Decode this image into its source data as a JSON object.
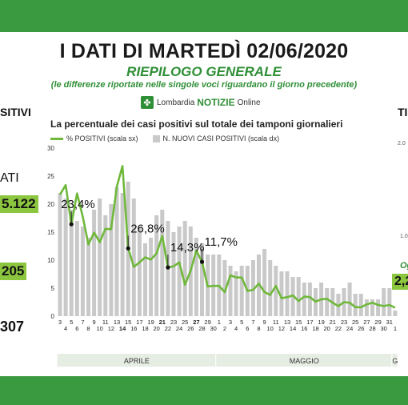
{
  "header": {
    "title": "I DATI DI MARTEDÌ 02/06/2020",
    "subtitle": "RIEPILOGO GENERALE",
    "note": "(le differenze riportate nelle singole voci riguardano il giorno precedente)",
    "logo_left": "Lombardia",
    "logo_mid": "NOTIZIE",
    "logo_right": "Online"
  },
  "side_left": {
    "title": "SITIVI",
    "label": "ATI",
    "value1": "5.122",
    "value2": "205",
    "value3": "307"
  },
  "side_right": {
    "title": "TI",
    "tick1": "2.0",
    "tick2": "1.0",
    "label": "Og",
    "value": "2,2"
  },
  "colors": {
    "band": "#3a9a3f",
    "line": "#6fb83b",
    "bars": "#c9c9c9",
    "month_strip": "#e6ede3"
  },
  "chart_data": {
    "type": "bar+line",
    "title": "La percentuale dei casi positivi sul totale dei tamponi giornalieri",
    "legend": [
      "% POSITIVI (scala sx)",
      "N. NUOVI CASI POSITIVI (scala dx)"
    ],
    "ylim": [
      0,
      30
    ],
    "yticks": [
      0,
      5,
      10,
      15,
      20,
      25,
      30
    ],
    "x_labels": [
      "3",
      "4",
      "5",
      "6",
      "7",
      "8",
      "9",
      "10",
      "11",
      "12",
      "13",
      "14",
      "15",
      "16",
      "17",
      "18",
      "19",
      "20",
      "21",
      "22",
      "23",
      "24",
      "25",
      "26",
      "27",
      "28",
      "29",
      "30",
      "1",
      "2",
      "3",
      "4",
      "5",
      "6",
      "7",
      "8",
      "9",
      "10",
      "11",
      "12",
      "13",
      "14",
      "15",
      "16",
      "17",
      "18",
      "19",
      "20",
      "21",
      "22",
      "23",
      "24",
      "25",
      "26",
      "27",
      "28",
      "29",
      "30",
      "31",
      "1"
    ],
    "bold_labels": [
      "14",
      "21",
      "27"
    ],
    "months": [
      {
        "name": "APRILE",
        "from": 1,
        "to": 28
      },
      {
        "name": "MAGGIO",
        "from": 29,
        "to": 59
      },
      {
        "name": "G",
        "from": 60,
        "to": 60
      }
    ],
    "bar_values": [
      22,
      21,
      19,
      17,
      16,
      14,
      19,
      21,
      18,
      20,
      23,
      22,
      24,
      21,
      16,
      13,
      14,
      18,
      19,
      17,
      15,
      16,
      17,
      16,
      14,
      13,
      11,
      11,
      11,
      10,
      9,
      8,
      9,
      9,
      10,
      11,
      12,
      10,
      9,
      8,
      8,
      7,
      7,
      6,
      6,
      5,
      6,
      5,
      5,
      4,
      5,
      6,
      4,
      4,
      3,
      3,
      3,
      5,
      5,
      1
    ],
    "pct_values": [
      21.7,
      23.4,
      16.4,
      21.9,
      17.8,
      12.8,
      14.9,
      13.2,
      15.6,
      15.5,
      23.1,
      26.8,
      12.1,
      8.8,
      9.6,
      10.5,
      10.1,
      11.2,
      14.3,
      8.7,
      8.9,
      9.6,
      5.6,
      8.1,
      11.7,
      9.7,
      5.3,
      5.4,
      5.4,
      4.3,
      7.3,
      6.9,
      6.9,
      4.5,
      4.7,
      5.8,
      4.3,
      3.8,
      5.4,
      3.2,
      3.4,
      3.7,
      2.7,
      3.5,
      3.4,
      2.6,
      3.0,
      3.1,
      2.4,
      1.8,
      2.5,
      2.4,
      1.6,
      1.6,
      2.1,
      2.4,
      2.0,
      1.8,
      2.0,
      1.5
    ],
    "annotations": [
      {
        "index": 2,
        "label": "23,4%"
      },
      {
        "index": 12,
        "label": "26,8%"
      },
      {
        "index": 19,
        "label": "14,3%"
      },
      {
        "index": 25,
        "label": "11,7%"
      }
    ]
  }
}
